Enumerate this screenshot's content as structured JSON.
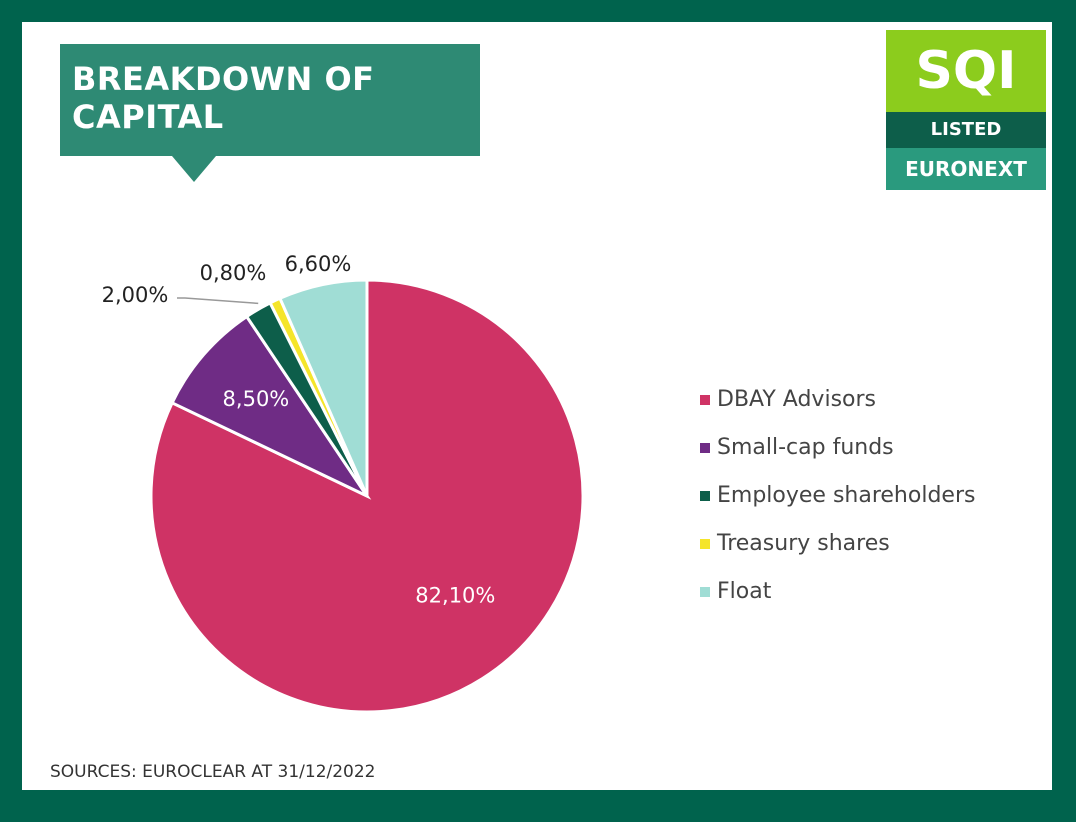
{
  "chart_data": {
    "type": "pie",
    "title": "BREAKDOWN OF CAPITAL",
    "categories": [
      "DBAY Advisors",
      "Small-cap funds",
      "Employee shareholders",
      "Treasury shares",
      "Float"
    ],
    "values": [
      82.1,
      8.5,
      2.0,
      0.8,
      6.6
    ],
    "value_labels": [
      "82,10%",
      "8,50%",
      "2,00%",
      "0,80%",
      "6,60%"
    ],
    "colors": [
      "#cf3365",
      "#6f2c85",
      "#0d5e4a",
      "#f5e52a",
      "#a0ddd5"
    ],
    "legend": "right",
    "source": "SOURCES: EUROCLEAR AT 31/12/2022"
  },
  "logo": {
    "top": "SQI",
    "middle": "LISTED",
    "bottom": "EURONEXT"
  }
}
